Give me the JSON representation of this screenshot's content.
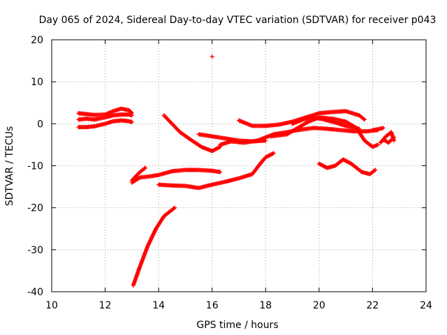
{
  "chart_data": {
    "type": "scatter",
    "title": "Day 065 of 2024, Sidereal Day-to-day VTEC variation (SDTVAR) for receiver p043",
    "xlabel": "GPS time / hours",
    "ylabel": "SDTVAR / TECUs",
    "xlim": [
      10,
      24
    ],
    "ylim": [
      -40,
      20
    ],
    "xticks": [
      10,
      12,
      14,
      16,
      18,
      20,
      22,
      24
    ],
    "yticks": [
      -40,
      -30,
      -20,
      -10,
      0,
      10,
      20
    ],
    "grid": true,
    "marker": "+",
    "color": "#ff0000",
    "series": [
      {
        "points": [
          [
            11.0,
            1.0
          ],
          [
            11.3,
            1.2
          ],
          [
            11.6,
            1.0
          ],
          [
            12.0,
            1.5
          ],
          [
            12.3,
            2.0
          ],
          [
            12.6,
            2.2
          ],
          [
            12.9,
            2.2
          ],
          [
            13.0,
            2.0
          ]
        ]
      },
      {
        "points": [
          [
            11.0,
            2.5
          ],
          [
            11.3,
            2.3
          ],
          [
            11.6,
            2.1
          ],
          [
            12.0,
            2.2
          ],
          [
            12.3,
            3.0
          ],
          [
            12.6,
            3.6
          ],
          [
            12.9,
            3.2
          ],
          [
            13.0,
            2.5
          ]
        ]
      },
      {
        "points": [
          [
            11.0,
            -0.8
          ],
          [
            11.3,
            -0.8
          ],
          [
            11.6,
            -0.6
          ],
          [
            12.0,
            0.0
          ],
          [
            12.3,
            0.6
          ],
          [
            12.6,
            0.8
          ],
          [
            12.9,
            0.6
          ],
          [
            13.0,
            0.4
          ]
        ]
      },
      {
        "points": [
          [
            16.0,
            16.0
          ]
        ]
      },
      {
        "points": [
          [
            13.05,
            -38.5
          ],
          [
            13.3,
            -34.0
          ],
          [
            13.6,
            -29.0
          ],
          [
            13.9,
            -25.0
          ],
          [
            14.2,
            -22.0
          ],
          [
            14.6,
            -20.0
          ]
        ]
      },
      {
        "points": [
          [
            13.0,
            -14.0
          ],
          [
            13.3,
            -12.8
          ],
          [
            13.7,
            -12.5
          ],
          [
            14.0,
            -12.2
          ],
          [
            14.5,
            -11.3
          ],
          [
            15.0,
            -11.0
          ],
          [
            15.5,
            -11.0
          ],
          [
            16.0,
            -11.2
          ],
          [
            16.3,
            -11.5
          ]
        ]
      },
      {
        "points": [
          [
            13.0,
            -13.5
          ],
          [
            13.3,
            -11.5
          ],
          [
            13.5,
            -10.5
          ]
        ]
      },
      {
        "points": [
          [
            14.0,
            -14.5
          ],
          [
            14.5,
            -14.7
          ],
          [
            15.0,
            -14.8
          ],
          [
            15.5,
            -15.3
          ],
          [
            16.0,
            -14.5
          ],
          [
            16.5,
            -13.8
          ],
          [
            17.0,
            -13.0
          ],
          [
            17.5,
            -12.0
          ],
          [
            17.8,
            -9.5
          ],
          [
            18.0,
            -8.0
          ],
          [
            18.3,
            -7.0
          ]
        ]
      },
      {
        "points": [
          [
            14.2,
            2.0
          ],
          [
            14.5,
            0.0
          ],
          [
            14.8,
            -2.0
          ],
          [
            15.2,
            -3.8
          ],
          [
            15.6,
            -5.5
          ],
          [
            16.0,
            -6.5
          ],
          [
            16.3,
            -5.5
          ]
        ]
      },
      {
        "points": [
          [
            15.5,
            -2.5
          ],
          [
            16.0,
            -3.0
          ],
          [
            16.5,
            -3.5
          ],
          [
            17.0,
            -4.0
          ],
          [
            17.5,
            -4.2
          ],
          [
            18.0,
            -4.0
          ]
        ]
      },
      {
        "points": [
          [
            16.3,
            -5.0
          ],
          [
            16.7,
            -4.2
          ],
          [
            17.2,
            -4.5
          ],
          [
            17.7,
            -4.0
          ],
          [
            18.3,
            -2.5
          ],
          [
            18.8,
            -2.0
          ],
          [
            19.2,
            -1.5
          ],
          [
            19.8,
            -1.0
          ],
          [
            20.3,
            -1.2
          ],
          [
            20.8,
            -1.5
          ],
          [
            21.3,
            -1.8
          ],
          [
            21.8,
            -1.8
          ],
          [
            22.2,
            -1.5
          ]
        ]
      },
      {
        "points": [
          [
            17.0,
            0.8
          ],
          [
            17.5,
            -0.5
          ],
          [
            18.0,
            -0.5
          ],
          [
            18.5,
            -0.2
          ],
          [
            19.0,
            0.5
          ],
          [
            19.5,
            1.5
          ],
          [
            20.0,
            2.5
          ],
          [
            20.5,
            2.8
          ],
          [
            21.0,
            3.0
          ],
          [
            21.5,
            2.0
          ],
          [
            21.7,
            1.0
          ]
        ]
      },
      {
        "points": [
          [
            18.2,
            -3.0
          ],
          [
            18.8,
            -2.5
          ],
          [
            19.2,
            -1.0
          ],
          [
            19.6,
            0.5
          ],
          [
            20.0,
            1.5
          ],
          [
            20.5,
            1.2
          ],
          [
            21.0,
            0.5
          ],
          [
            21.4,
            -1.0
          ],
          [
            21.7,
            -4.0
          ],
          [
            22.0,
            -5.5
          ],
          [
            22.2,
            -5.0
          ]
        ]
      },
      {
        "points": [
          [
            19.0,
            0.0
          ],
          [
            19.4,
            1.0
          ],
          [
            19.8,
            1.5
          ],
          [
            20.2,
            1.0
          ],
          [
            20.6,
            0.3
          ],
          [
            21.0,
            -0.5
          ],
          [
            21.5,
            -1.2
          ]
        ]
      },
      {
        "points": [
          [
            20.0,
            -9.5
          ],
          [
            20.3,
            -10.5
          ],
          [
            20.6,
            -10.0
          ],
          [
            20.9,
            -8.5
          ],
          [
            21.2,
            -9.5
          ],
          [
            21.6,
            -11.5
          ],
          [
            21.9,
            -12.0
          ],
          [
            22.1,
            -11.0
          ]
        ]
      },
      {
        "points": [
          [
            22.0,
            -1.5
          ],
          [
            22.2,
            -1.3
          ],
          [
            22.4,
            -1.0
          ]
        ]
      },
      {
        "points": [
          [
            22.3,
            -4.5
          ],
          [
            22.5,
            -3.0
          ],
          [
            22.7,
            -2.0
          ],
          [
            22.8,
            -4.0
          ]
        ]
      },
      {
        "points": [
          [
            22.4,
            -3.8
          ],
          [
            22.6,
            -4.5
          ],
          [
            22.8,
            -3.2
          ]
        ]
      }
    ]
  }
}
